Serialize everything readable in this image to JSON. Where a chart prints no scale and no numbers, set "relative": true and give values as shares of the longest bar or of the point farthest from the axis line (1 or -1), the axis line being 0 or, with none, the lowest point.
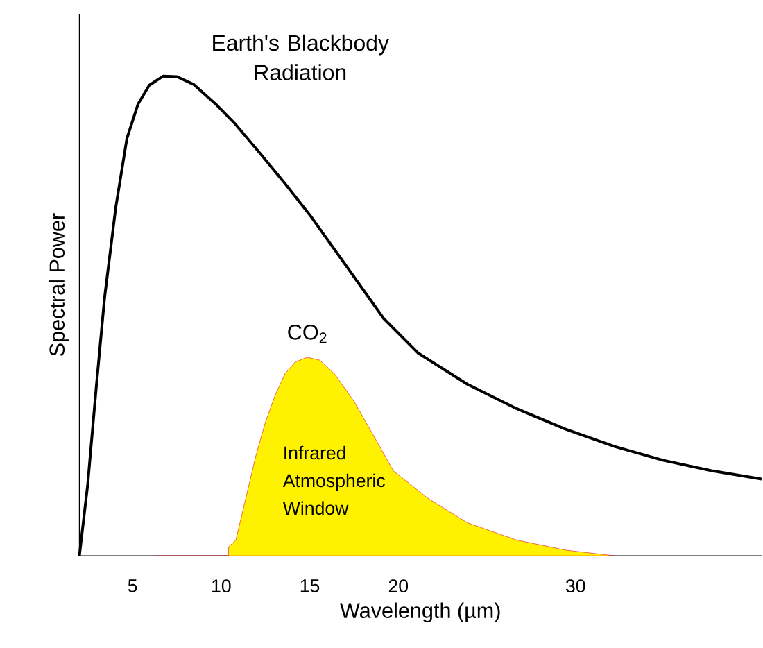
{
  "chart_data": {
    "type": "line",
    "relative": true,
    "xlabel": "Wavelength (µm)",
    "ylabel": "Spectral Power",
    "xlim": [
      2,
      40.5
    ],
    "xticks": [
      5,
      10,
      15,
      20,
      30
    ],
    "annotations": [
      "CO$_{2}$"
    ],
    "series": [
      {
        "name": "Earth's Blackbody Radiation",
        "color": "#000000",
        "x": [
          2.0,
          2.47,
          2.95,
          3.42,
          4.05,
          4.68,
          5.31,
          5.94,
          6.72,
          7.5,
          8.44,
          9.69,
          10.83,
          12.22,
          13.61,
          15.0,
          16.39,
          17.78,
          19.17,
          21.11,
          23.89,
          26.67,
          29.44,
          32.21,
          34.97,
          37.74,
          40.5
        ],
        "values": [
          0,
          0.149,
          0.351,
          0.538,
          0.726,
          0.87,
          0.942,
          0.981,
          1.0,
          0.999,
          0.983,
          0.942,
          0.899,
          0.838,
          0.776,
          0.711,
          0.639,
          0.567,
          0.495,
          0.423,
          0.358,
          0.307,
          0.264,
          0.228,
          0.199,
          0.177,
          0.16
        ]
      },
      {
        "name": "Infrared Atmospheric Window",
        "color": "#fff200",
        "type": "area",
        "x": [
          6.25,
          10.42,
          10.42,
          10.83,
          11.39,
          11.94,
          12.5,
          13.06,
          13.61,
          14.17,
          14.86,
          15.56,
          16.39,
          17.5,
          18.61,
          19.72,
          21.67,
          23.89,
          26.67,
          29.44,
          32.21
        ],
        "values": [
          0,
          0,
          0.019,
          0.033,
          0.12,
          0.206,
          0.279,
          0.336,
          0.38,
          0.404,
          0.414,
          0.408,
          0.38,
          0.322,
          0.25,
          0.177,
          0.12,
          0.069,
          0.033,
          0.012,
          0
        ]
      }
    ]
  }
}
